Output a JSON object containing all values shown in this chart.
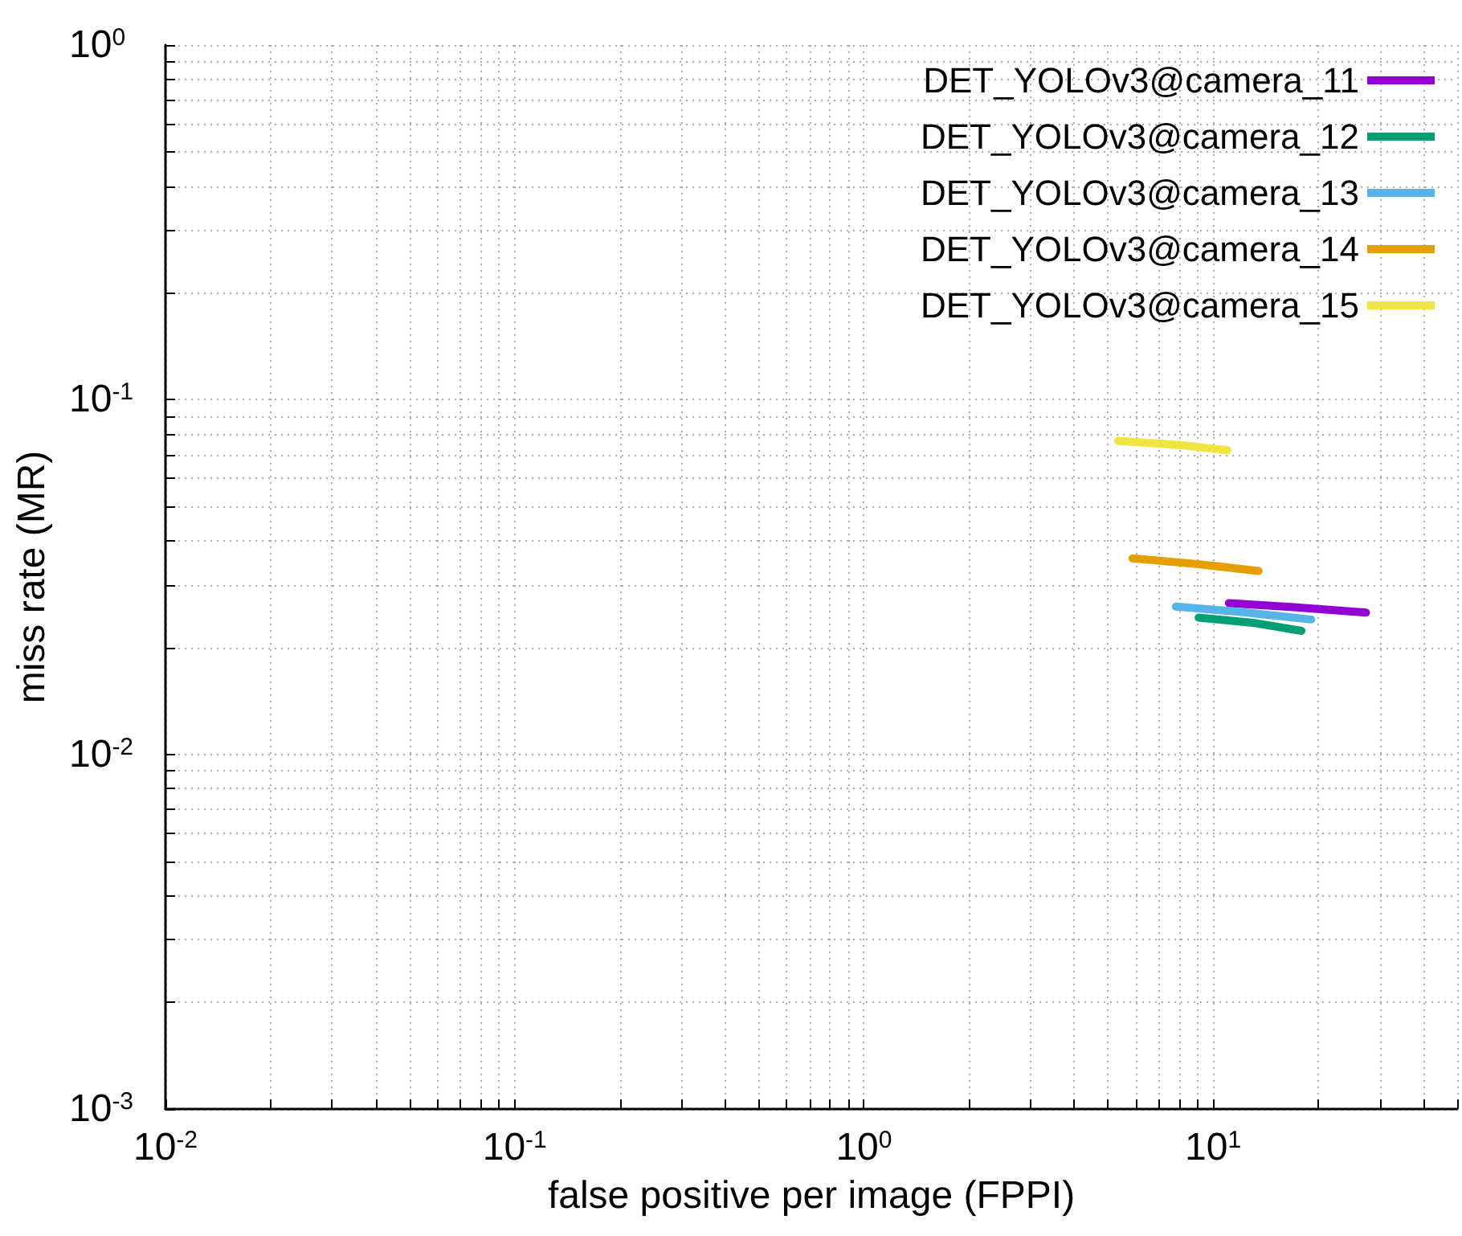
{
  "chart_data": {
    "type": "line",
    "xlabel": "false positive per image (FPPI)",
    "ylabel": "miss rate (MR)",
    "log": "xy",
    "grid": true,
    "legend": "top right",
    "marker": "none",
    "line_style": "solid",
    "xlim": [
      0.01,
      50
    ],
    "ylim": [
      0.001,
      1
    ],
    "xticks": [
      {
        "value": 0.01,
        "label": "10$^{-2}$"
      },
      {
        "value": 0.02,
        "label": null
      },
      {
        "value": 0.03,
        "label": null
      },
      {
        "value": 0.04,
        "label": null
      },
      {
        "value": 0.05,
        "label": null
      },
      {
        "value": 0.06,
        "label": null
      },
      {
        "value": 0.07,
        "label": null
      },
      {
        "value": 0.08,
        "label": null
      },
      {
        "value": 0.09,
        "label": null
      },
      {
        "value": 0.1,
        "label": "10$^{-1}$"
      },
      {
        "value": 0.2,
        "label": null
      },
      {
        "value": 0.3,
        "label": null
      },
      {
        "value": 0.4,
        "label": null
      },
      {
        "value": 0.5,
        "label": null
      },
      {
        "value": 0.6,
        "label": null
      },
      {
        "value": 0.7,
        "label": null
      },
      {
        "value": 0.8,
        "label": null
      },
      {
        "value": 0.9,
        "label": null
      },
      {
        "value": 1,
        "label": "10$^{0}$"
      },
      {
        "value": 2,
        "label": null
      },
      {
        "value": 3,
        "label": null
      },
      {
        "value": 4,
        "label": null
      },
      {
        "value": 5,
        "label": null
      },
      {
        "value": 6,
        "label": null
      },
      {
        "value": 7,
        "label": null
      },
      {
        "value": 8,
        "label": null
      },
      {
        "value": 9,
        "label": null
      },
      {
        "value": 10,
        "label": "10$^{1}$"
      },
      {
        "value": 20,
        "label": null
      },
      {
        "value": 30,
        "label": null
      },
      {
        "value": 40,
        "label": null
      },
      {
        "value": 50,
        "label": null
      }
    ],
    "yticks": [
      {
        "value": 0.001,
        "label": "10$^{-3}$"
      },
      {
        "value": 0.002,
        "label": null
      },
      {
        "value": 0.003,
        "label": null
      },
      {
        "value": 0.004,
        "label": null
      },
      {
        "value": 0.005,
        "label": null
      },
      {
        "value": 0.006,
        "label": null
      },
      {
        "value": 0.007,
        "label": null
      },
      {
        "value": 0.008,
        "label": null
      },
      {
        "value": 0.009,
        "label": null
      },
      {
        "value": 0.01,
        "label": "10$^{-2}$"
      },
      {
        "value": 0.02,
        "label": null
      },
      {
        "value": 0.03,
        "label": null
      },
      {
        "value": 0.04,
        "label": null
      },
      {
        "value": 0.05,
        "label": null
      },
      {
        "value": 0.06,
        "label": null
      },
      {
        "value": 0.07,
        "label": null
      },
      {
        "value": 0.08,
        "label": null
      },
      {
        "value": 0.09,
        "label": null
      },
      {
        "value": 0.1,
        "label": "10$^{-1}$"
      },
      {
        "value": 0.2,
        "label": null
      },
      {
        "value": 0.3,
        "label": null
      },
      {
        "value": 0.4,
        "label": null
      },
      {
        "value": 0.5,
        "label": null
      },
      {
        "value": 0.6,
        "label": null
      },
      {
        "value": 0.7,
        "label": null
      },
      {
        "value": 0.8,
        "label": null
      },
      {
        "value": 0.9,
        "label": null
      },
      {
        "value": 1,
        "label": "10$^{0}$"
      }
    ],
    "series": [
      {
        "name": "DET_YOLOv3@camera_11",
        "color": "#9400d3",
        "x": [
          11.1,
          17,
          27.4
        ],
        "values": [
          0.0267,
          0.026,
          0.0251
        ]
      },
      {
        "name": "DET_YOLOv3@camera_12",
        "color": "#009e73",
        "x": [
          9.09,
          13,
          17.9
        ],
        "values": [
          0.0243,
          0.0235,
          0.0223
        ]
      },
      {
        "name": "DET_YOLOv3@camera_13",
        "color": "#56b4e9",
        "x": [
          7.83,
          12,
          19.1
        ],
        "values": [
          0.0261,
          0.0252,
          0.024
        ]
      },
      {
        "name": "DET_YOLOv3@camera_14",
        "color": "#e69f00",
        "x": [
          5.88,
          9,
          13.5
        ],
        "values": [
          0.0357,
          0.0344,
          0.0329
        ]
      },
      {
        "name": "DET_YOLOv3@camera_15",
        "color": "#f0e442",
        "x": [
          5.35,
          8,
          11.0
        ],
        "values": [
          0.0766,
          0.0745,
          0.072
        ]
      }
    ]
  }
}
